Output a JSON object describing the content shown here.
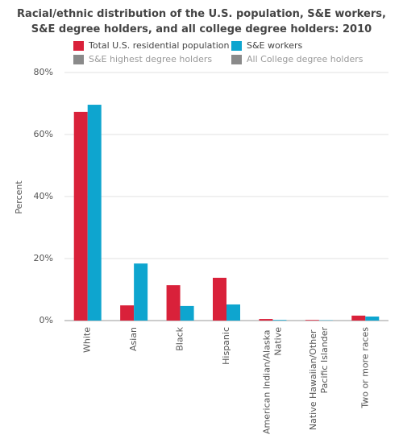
{
  "chart_data": {
    "type": "bar",
    "title": "Racial/ethnic distribution of the U.S. population, S&E workers, S&E degree holders, and all college degree holders: 2010",
    "y_label": "Percent",
    "categories": [
      "White",
      "Asian",
      "Black",
      "Hispanic",
      "American Indian/Alaska Native",
      "Native Hawaiian/Other Pacific Islander",
      "Two or more races"
    ],
    "series": [
      {
        "name": "Total U.S. residential population",
        "color": "#d9213a",
        "values": [
          67.3,
          4.9,
          11.4,
          13.8,
          0.5,
          0.2,
          1.6
        ]
      },
      {
        "name": "S&E workers",
        "color": "#0ea5cf",
        "values": [
          69.6,
          18.4,
          4.7,
          5.2,
          0.2,
          0.1,
          1.3
        ]
      },
      {
        "name": "S&E highest degree holders",
        "color": "#8a8a8a",
        "hidden": true,
        "values": [
          null,
          null,
          null,
          null,
          null,
          null,
          null
        ]
      },
      {
        "name": "All College degree holders",
        "color": "#8a8a8a",
        "hidden": true,
        "values": [
          null,
          null,
          null,
          null,
          null,
          null,
          null
        ]
      }
    ],
    "ylim": [
      0,
      80
    ],
    "yticks": [
      {
        "value": 0,
        "label": "0%"
      },
      {
        "value": 20,
        "label": "20%"
      },
      {
        "value": 40,
        "label": "40%"
      },
      {
        "value": 60,
        "label": "60%"
      },
      {
        "value": 80,
        "label": "80%"
      }
    ],
    "grid": true
  }
}
